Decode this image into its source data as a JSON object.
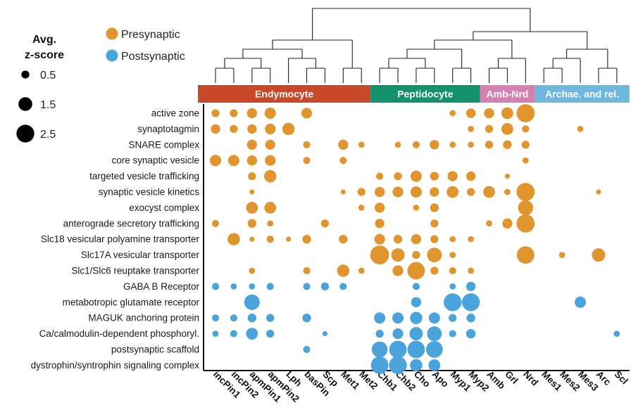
{
  "chart_data": {
    "type": "bubble_matrix",
    "colors": {
      "presynaptic": "#E0952F",
      "postsynaptic": "#4AA3DB",
      "Endymocyte": "#C8492A",
      "Peptidocyte": "#12916B",
      "Amb-Nrd": "#D680B2",
      "Archae. and rel.": "#6EB7DE"
    },
    "legend": {
      "size_title": [
        "Avg.",
        "z-score"
      ],
      "size_levels": [
        {
          "label": "0.5",
          "value": 0.5
        },
        {
          "label": "1.5",
          "value": 1.5
        },
        {
          "label": "2.5",
          "value": 2.5
        }
      ],
      "categories": [
        "Presynaptic",
        "Postsynaptic"
      ]
    },
    "groups": [
      {
        "name": "Endymocyte",
        "columns": [
          "incPin1",
          "incPin2",
          "apmPin1",
          "apmPin2",
          "Lph",
          "basPin",
          "Scp",
          "Met1",
          "Met2"
        ]
      },
      {
        "name": "Peptidocyte",
        "columns": [
          "Chb1",
          "Chb2",
          "Cho",
          "Apo",
          "Myp1",
          "Myp2"
        ]
      },
      {
        "name": "Amb-Nrd",
        "columns": [
          "Amb",
          "Grl",
          "Nrd"
        ]
      },
      {
        "name": "Archae. and rel.",
        "columns": [
          "Mes1",
          "Mes2",
          "Mes3",
          "Arc",
          "Scl"
        ]
      }
    ],
    "columns": [
      "incPin1",
      "incPin2",
      "apmPin1",
      "apmPin2",
      "Lph",
      "basPin",
      "Scp",
      "Met1",
      "Met2",
      "Chb1",
      "Chb2",
      "Cho",
      "Apo",
      "Myp1",
      "Myp2",
      "Amb",
      "Grl",
      "Nrd",
      "Mes1",
      "Mes2",
      "Mes3",
      "Arc",
      "Scl"
    ],
    "rows": [
      {
        "label": "active zone",
        "category": "presynaptic",
        "values": [
          0.5,
          0.5,
          0.8,
          1.0,
          0,
          0.9,
          0,
          0,
          0,
          0,
          0,
          0,
          0,
          0.3,
          0.7,
          0.8,
          1.1,
          2.6,
          0,
          0,
          0,
          0,
          0
        ]
      },
      {
        "label": "synaptotagmin",
        "category": "presynaptic",
        "values": [
          0.7,
          0.5,
          0.7,
          0.9,
          1.2,
          0,
          0,
          0,
          0,
          0,
          0,
          0,
          0,
          0,
          0.3,
          0.5,
          1.1,
          0.4,
          0,
          0,
          0.3,
          0,
          0
        ]
      },
      {
        "label": "SNARE complex",
        "category": "presynaptic",
        "values": [
          0,
          0,
          0.8,
          0.8,
          0,
          0.4,
          0,
          0.8,
          0.3,
          0,
          0.3,
          0.4,
          0.7,
          0.3,
          0.3,
          0.5,
          0.6,
          0.5,
          0,
          0,
          0,
          0,
          0
        ]
      },
      {
        "label": "core synaptic vesicle",
        "category": "presynaptic",
        "values": [
          1.0,
          1.0,
          0.8,
          0.9,
          0,
          0.4,
          0,
          0.4,
          0,
          0,
          0,
          0,
          0,
          0,
          0,
          0,
          0,
          0.3,
          0,
          0,
          0,
          0,
          0
        ]
      },
      {
        "label": "targeted vesicle trafficking",
        "category": "presynaptic",
        "values": [
          0,
          0,
          0.5,
          1.2,
          0,
          0,
          0,
          0,
          0,
          0.4,
          0.5,
          1.0,
          0.6,
          0.8,
          0.7,
          0,
          0.2,
          0,
          0,
          0,
          0,
          0,
          0
        ]
      },
      {
        "label": "synaptic vesicle kinetics",
        "category": "presynaptic",
        "values": [
          0,
          0,
          0.2,
          0,
          0,
          0,
          0,
          0.2,
          0.5,
          0.8,
          0.9,
          1.0,
          0.7,
          1.1,
          0.5,
          1.1,
          0.3,
          2.6,
          0,
          0,
          0,
          0.2,
          0
        ]
      },
      {
        "label": "exocyst complex",
        "category": "presynaptic",
        "values": [
          0,
          0,
          1.1,
          1.1,
          0,
          0,
          0,
          0,
          0.3,
          0.8,
          0,
          0.3,
          0.6,
          0,
          0,
          0,
          0,
          1.8,
          0,
          0,
          0,
          0,
          0
        ]
      },
      {
        "label": "anterograde secretory trafficking",
        "category": "presynaptic",
        "values": [
          0.4,
          0,
          0.6,
          0.3,
          0,
          0,
          0.5,
          0,
          0,
          0.7,
          0,
          0,
          0.5,
          0,
          0,
          0.3,
          0.8,
          2.6,
          0,
          0,
          0,
          0,
          0
        ]
      },
      {
        "label": "Slc18 vesicular polyamine transporter",
        "category": "presynaptic",
        "values": [
          0,
          1.2,
          0.2,
          0.4,
          0.2,
          0.6,
          0,
          0.6,
          0,
          0.9,
          0.6,
          0.8,
          0.5,
          0.3,
          0.3,
          0,
          0,
          0,
          0,
          0,
          0,
          0,
          0
        ]
      },
      {
        "label": "Slc17A vesicular transporter",
        "category": "presynaptic",
        "values": [
          0,
          0,
          0,
          0,
          0,
          0,
          0,
          0,
          0,
          2.8,
          1.4,
          0.5,
          1.7,
          0.3,
          0,
          0,
          0,
          2.4,
          0,
          0.3,
          0,
          1.4,
          0
        ]
      },
      {
        "label": "Slc1/Slc6 reuptake transporter",
        "category": "presynaptic",
        "values": [
          0,
          0,
          0.3,
          0,
          0,
          0.4,
          0,
          1.2,
          0.3,
          0,
          0.9,
          2.4,
          0.5,
          0.4,
          0.3,
          0,
          0,
          0,
          0,
          0,
          0,
          0,
          0
        ]
      },
      {
        "label": "GABA B Receptor",
        "category": "postsynaptic",
        "values": [
          0.4,
          0.3,
          0.3,
          0.4,
          0,
          0.4,
          0.5,
          0.4,
          0,
          0,
          0,
          0.4,
          0,
          0.3,
          0.7,
          0,
          0,
          0,
          0,
          0,
          0,
          0,
          0
        ]
      },
      {
        "label": "metabotropic glutamate receptor",
        "category": "postsynaptic",
        "values": [
          0,
          0,
          1.9,
          0,
          0,
          0,
          0,
          0,
          0,
          0,
          0,
          0.8,
          0,
          2.5,
          2.5,
          0,
          0,
          0,
          0,
          0,
          1.0,
          0,
          0
        ]
      },
      {
        "label": "MAGUK anchoring protein",
        "category": "postsynaptic",
        "values": [
          0.4,
          0.4,
          0.6,
          0.5,
          0,
          0.6,
          0,
          0,
          0,
          1.0,
          1.0,
          1.2,
          1.0,
          0.5,
          0.6,
          0,
          0,
          0,
          0,
          0,
          0,
          0,
          0
        ]
      },
      {
        "label": "Ca/calmodulin-dependent phosphoryl.",
        "category": "postsynaptic",
        "values": [
          0.3,
          0.4,
          1.1,
          0.5,
          0,
          0,
          0.2,
          0,
          0,
          0.5,
          0.9,
          1.4,
          1.7,
          0.4,
          0.7,
          0,
          0,
          0,
          0,
          0,
          0,
          0,
          0.3
        ]
      },
      {
        "label": "postsynaptic scaffold",
        "category": "postsynaptic",
        "values": [
          0,
          0,
          0,
          0,
          0,
          0.4,
          0,
          0,
          0,
          2.0,
          2.4,
          2.4,
          2.2,
          0,
          0,
          0,
          0,
          0,
          0,
          0,
          0,
          0,
          0
        ]
      },
      {
        "label": "dystrophin/syntrophin signaling complex",
        "category": "postsynaptic",
        "values": [
          0,
          0,
          0,
          0,
          0,
          0,
          0,
          0,
          0,
          2.4,
          2.5,
          1.2,
          1.1,
          0,
          0,
          0,
          0,
          0,
          0,
          0,
          0,
          0,
          0
        ]
      }
    ]
  }
}
